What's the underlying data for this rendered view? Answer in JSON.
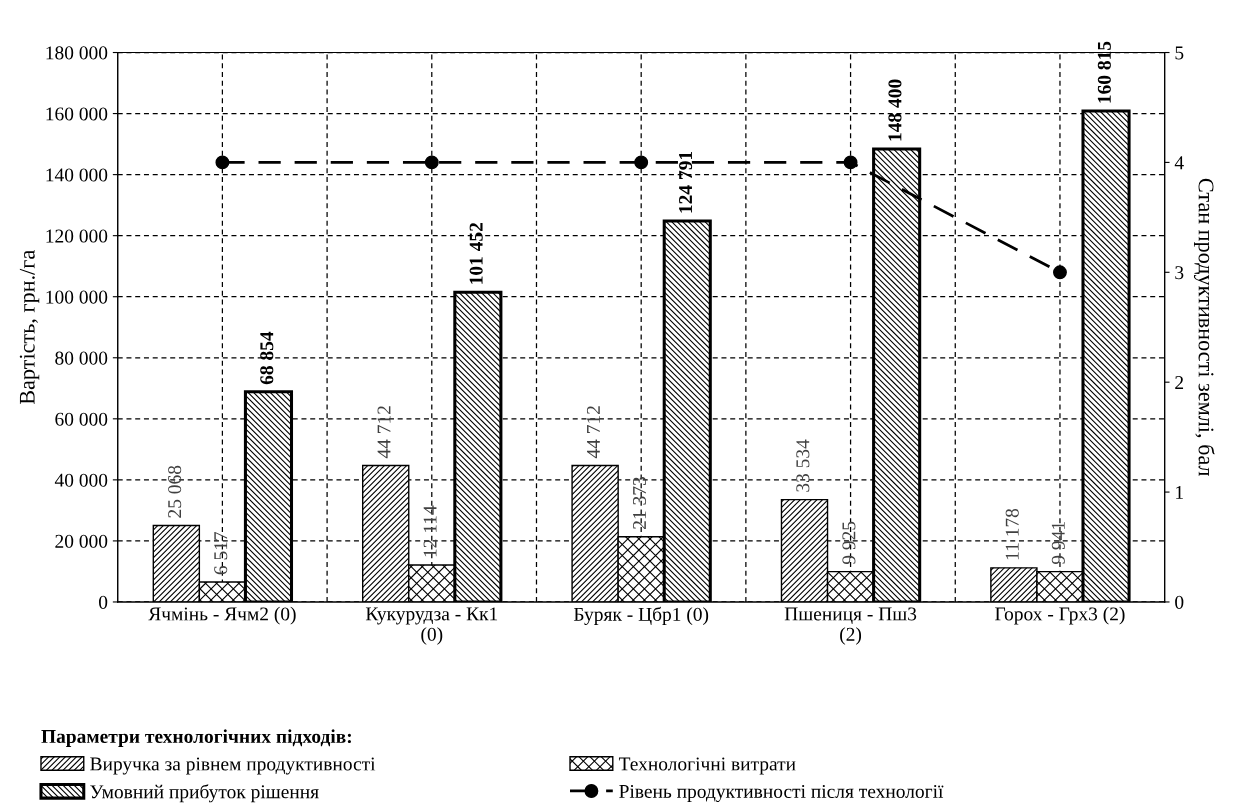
{
  "chart_data": {
    "type": "bar",
    "categories": [
      "Ячмінь - Ячм2 (0)",
      "Кукурудза - Кк1\n(0)",
      "Буряк - Цбр1 (0)",
      "Пшениця - Пш3\n(2)",
      "Горох - Грх3 (2)"
    ],
    "ylabel": "Вартість, грн./га",
    "y2label": "Стан продуктивності землі, бал",
    "legend_title": "Параметри технологічних підходів:",
    "series": [
      {
        "name": "Виручка за рівнем продуктивності",
        "color": "#000000",
        "values": [
          25068,
          44712,
          44712,
          33534,
          11178
        ],
        "value_labels": [
          "25 068",
          "44 712",
          "44 712",
          "33 534",
          "11 178"
        ]
      },
      {
        "name": "Технологічні витрати",
        "color": "#000000",
        "values": [
          6517,
          12114,
          21373,
          9925,
          9941
        ],
        "value_labels": [
          "6 517",
          "12 114",
          "21 373",
          "9 925",
          "9 941"
        ]
      },
      {
        "name": "Умовний прибуток рішення",
        "color": "#000000",
        "values": [
          68854,
          101452,
          124791,
          148400,
          160815
        ],
        "value_labels": [
          "68 854",
          "101 452",
          "124 791",
          "148 400",
          "160 815"
        ]
      },
      {
        "name": "Рівень продуктивності після технології",
        "color": "#000000",
        "type": "line",
        "axis": "y2",
        "marker": "circle",
        "line_style": "dashed",
        "values": [
          4,
          4,
          4,
          4,
          3
        ]
      }
    ],
    "ylim": [
      0,
      180000
    ],
    "yticks": [
      0,
      {
        "value": 20000,
        "label": "20 000"
      },
      {
        "value": 40000,
        "label": "40 000"
      },
      {
        "value": 60000,
        "label": "60 000"
      },
      {
        "value": 80000,
        "label": "80 000"
      },
      {
        "value": 100000,
        "label": "100 000"
      },
      {
        "value": 120000,
        "label": "120 000"
      },
      {
        "value": 140000,
        "label": "140 000"
      },
      {
        "value": 160000,
        "label": "160 000"
      },
      {
        "value": 180000,
        "label": "180 000"
      }
    ],
    "y2lim": [
      0,
      5
    ],
    "y2ticks": [
      0,
      1,
      2,
      3,
      4,
      5
    ],
    "grid": true,
    "legend": "bottom"
  }
}
